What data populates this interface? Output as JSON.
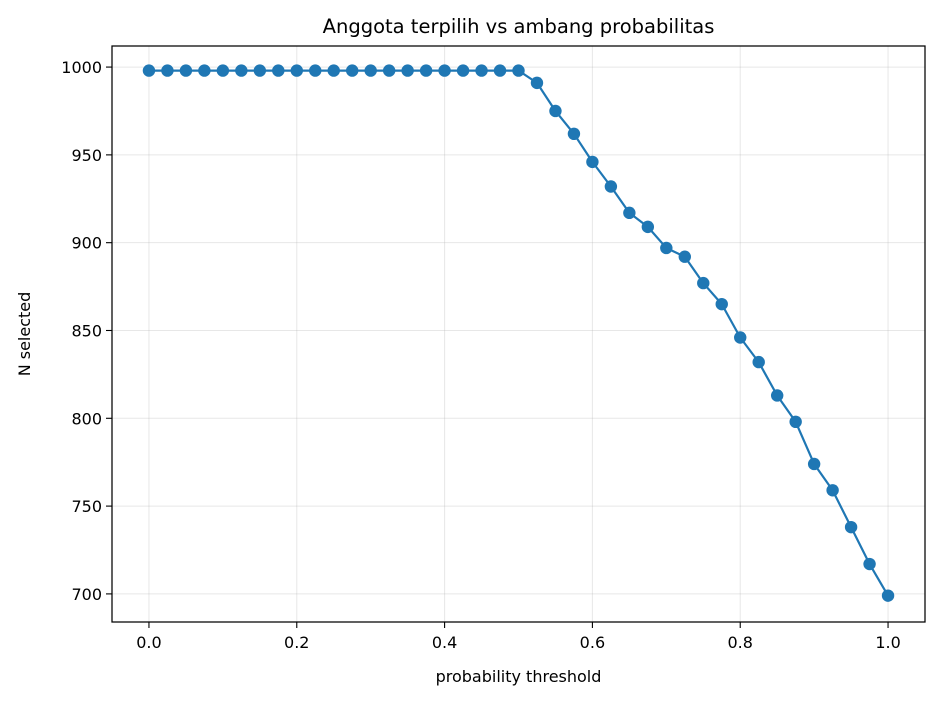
{
  "chart_data": {
    "type": "line",
    "title": "Anggota terpilih vs ambang probabilitas",
    "xlabel": "probability threshold",
    "ylabel": "N selected",
    "xlim": [
      -0.05,
      1.05
    ],
    "ylim": [
      684,
      1012
    ],
    "xticks": [
      0.0,
      0.2,
      0.4,
      0.6,
      0.8,
      1.0
    ],
    "xtick_labels": [
      "0.0",
      "0.2",
      "0.4",
      "0.6",
      "0.8",
      "1.0"
    ],
    "yticks": [
      700,
      750,
      800,
      850,
      900,
      950,
      1000
    ],
    "ytick_labels": [
      "700",
      "750",
      "800",
      "850",
      "900",
      "950",
      "1000"
    ],
    "grid": true,
    "marker": "circle",
    "color": "#1f77b4",
    "series": [
      {
        "x": [
          0.0,
          0.025,
          0.05,
          0.075,
          0.1,
          0.125,
          0.15,
          0.175,
          0.2,
          0.225,
          0.25,
          0.275,
          0.3,
          0.325,
          0.35,
          0.375,
          0.4,
          0.425,
          0.45,
          0.475,
          0.5,
          0.525,
          0.55,
          0.575,
          0.6,
          0.625,
          0.65,
          0.675,
          0.7,
          0.725,
          0.75,
          0.775,
          0.8,
          0.825,
          0.85,
          0.875,
          0.9,
          0.925,
          0.95,
          0.975,
          1.0
        ],
        "y": [
          998,
          998,
          998,
          998,
          998,
          998,
          998,
          998,
          998,
          998,
          998,
          998,
          998,
          998,
          998,
          998,
          998,
          998,
          998,
          998,
          998,
          991,
          975,
          962,
          946,
          932,
          917,
          909,
          897,
          892,
          877,
          865,
          846,
          832,
          813,
          798,
          774,
          759,
          738,
          717,
          699
        ]
      }
    ]
  }
}
